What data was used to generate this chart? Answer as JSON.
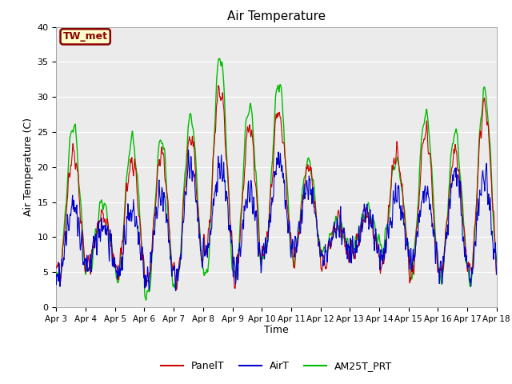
{
  "title": "Air Temperature",
  "xlabel": "Time",
  "ylabel": "Air Temperature (C)",
  "ylim": [
    0,
    40
  ],
  "yticks": [
    0,
    5,
    10,
    15,
    20,
    25,
    30,
    35,
    40
  ],
  "xtick_labels": [
    "Apr 3",
    "Apr 4",
    "Apr 5",
    "Apr 6",
    "Apr 7",
    "Apr 8",
    "Apr 9",
    "Apr 10",
    "Apr 11",
    "Apr 12",
    "Apr 13",
    "Apr 14",
    "Apr 15",
    "Apr 16",
    "Apr 17",
    "Apr 18"
  ],
  "annotation_text": "TW_met",
  "annotation_color": "#8B0000",
  "annotation_bg": "#FFFFCC",
  "bg_color": "#EBEBEB",
  "line_colors": {
    "PanelT": "#CC0000",
    "AirT": "#0000CC",
    "AM25T_PRT": "#00BB00"
  },
  "line_widths": {
    "PanelT": 0.8,
    "AirT": 0.8,
    "AM25T_PRT": 1.0
  }
}
